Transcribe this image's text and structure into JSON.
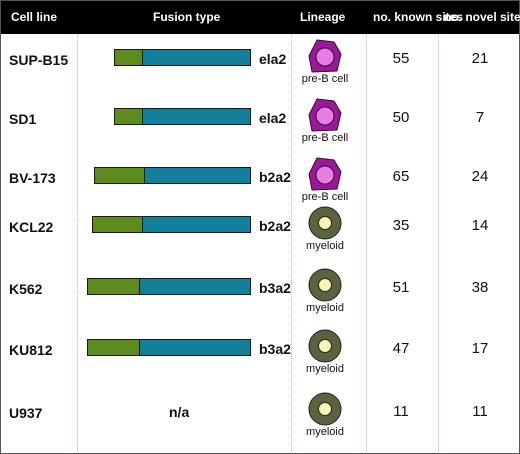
{
  "headers": {
    "cell_line": "Cell line",
    "fusion_type": "Fusion type",
    "lineage": "Lineage",
    "known_sites": "no. known sites",
    "novel_sites": "no. novel sites"
  },
  "colors": {
    "header_bg": "#000000",
    "bar_green": "#5e8b1e",
    "bar_blue": "#13809b",
    "preb_outer": "#9a1a96",
    "preb_inner": "#e77de4",
    "myeloid_outer": "#5b6240",
    "myeloid_inner": "#f6f6b0",
    "grid_line": "#a6cdd0"
  },
  "rows": [
    {
      "cell_line": "SUP-B15",
      "fusion": "ela2",
      "lineage": "pre-B cell",
      "lineage_icon": "pre-b-cell-icon",
      "known": "55",
      "novel": "21"
    },
    {
      "cell_line": "SD1",
      "fusion": "ela2",
      "lineage": "pre-B cell",
      "lineage_icon": "pre-b-cell-icon",
      "known": "50",
      "novel": "7"
    },
    {
      "cell_line": "BV-173",
      "fusion": "b2a2",
      "lineage": "pre-B cell",
      "lineage_icon": "pre-b-cell-icon",
      "known": "65",
      "novel": "24"
    },
    {
      "cell_line": "KCL22",
      "fusion": "b2a2",
      "lineage": "myeloid",
      "lineage_icon": "myeloid-cell-icon",
      "known": "35",
      "novel": "14"
    },
    {
      "cell_line": "K562",
      "fusion": "b3a2",
      "lineage": "myeloid",
      "lineage_icon": "myeloid-cell-icon",
      "known": "51",
      "novel": "38"
    },
    {
      "cell_line": "KU812",
      "fusion": "b3a2",
      "lineage": "myeloid",
      "lineage_icon": "myeloid-cell-icon",
      "known": "47",
      "novel": "17"
    },
    {
      "cell_line": "U937",
      "fusion": "n/a",
      "lineage": "myeloid",
      "lineage_icon": "myeloid-cell-icon",
      "known": "11",
      "novel": "11"
    }
  ]
}
